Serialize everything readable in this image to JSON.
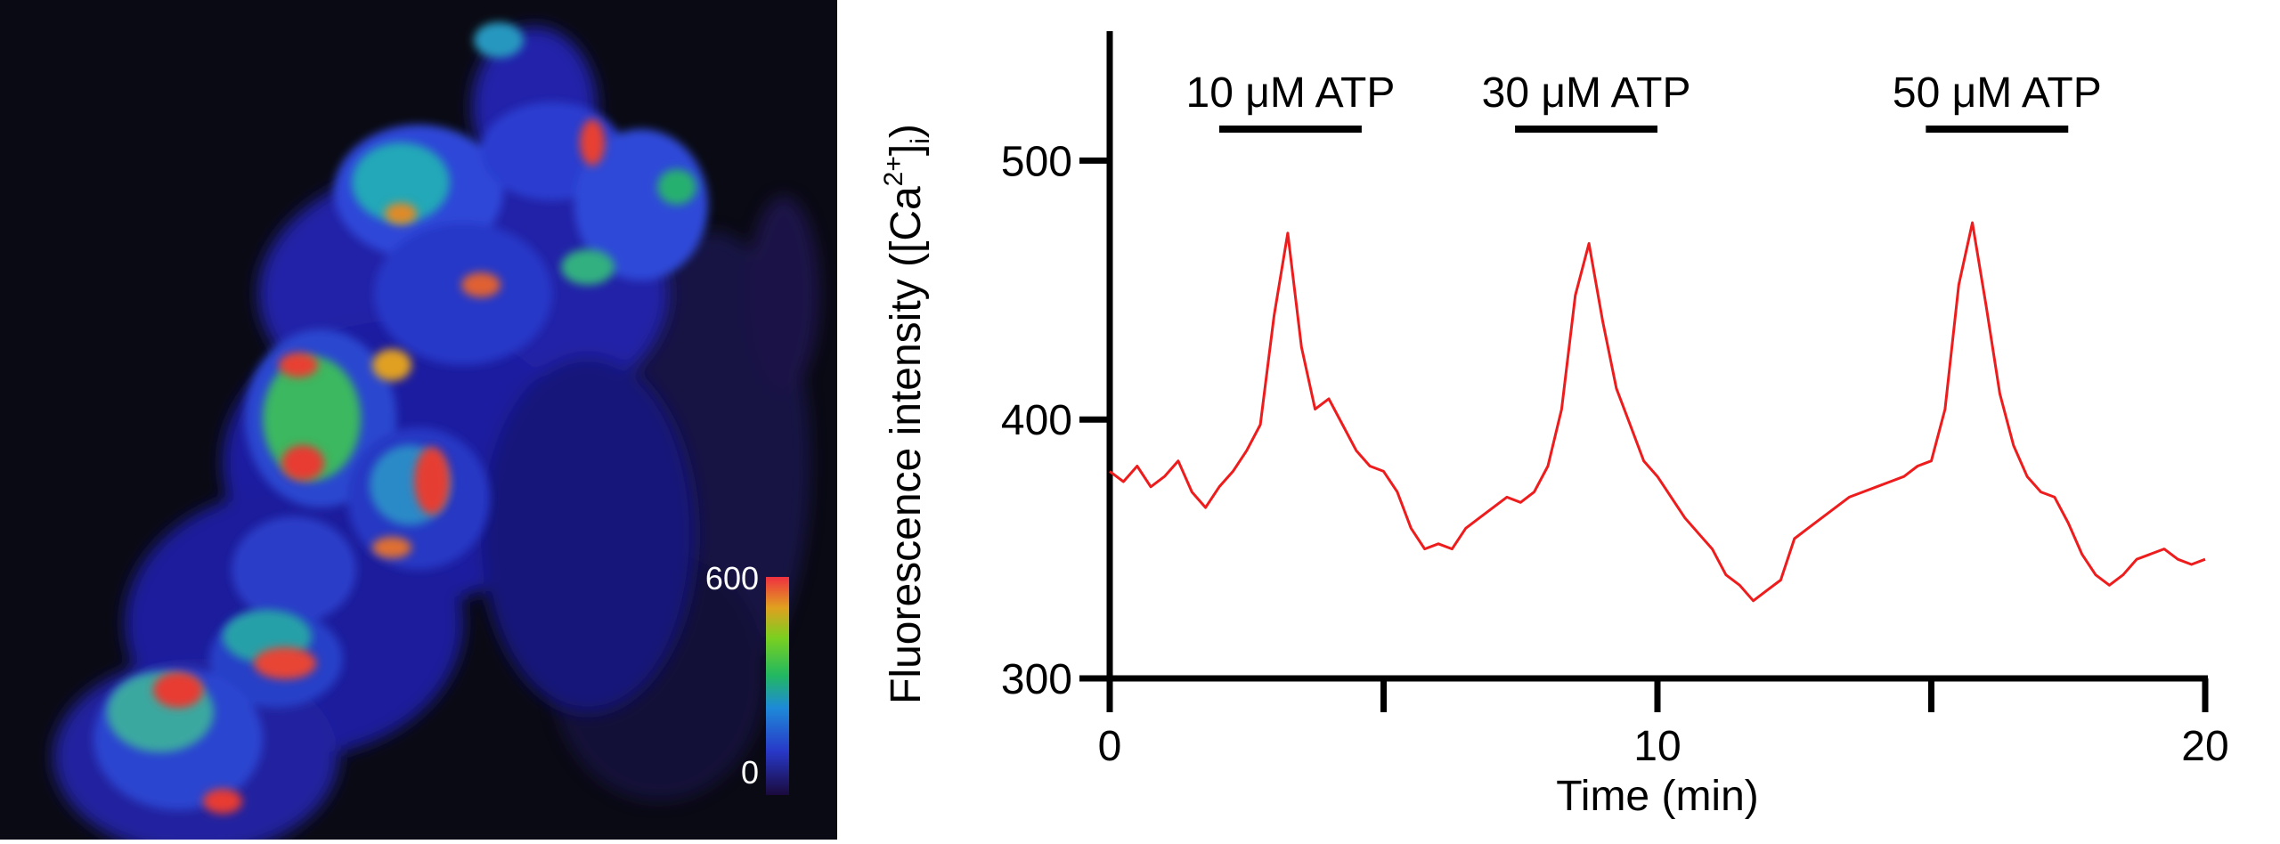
{
  "micrograph": {
    "colorbar": {
      "max_label": "600",
      "min_label": "0"
    }
  },
  "chart_data": {
    "type": "line",
    "xlabel": "Time (min)",
    "ylabel": "Fluorescence intensity ([Ca2+]i)",
    "ylabel_parts": {
      "main": "Fluorescence intensity ([Ca",
      "sup": "2+",
      "close": "]",
      "sub": "i",
      "end": ")"
    },
    "xlim": [
      0,
      20
    ],
    "ylim": [
      300,
      550
    ],
    "xticks": [
      0,
      5,
      10,
      15,
      20
    ],
    "xtick_labels": [
      "0",
      "",
      "10",
      "",
      "20"
    ],
    "yticks": [
      300,
      400,
      500
    ],
    "ytick_labels": [
      "300",
      "400",
      "500"
    ],
    "line_color": "#ee1c1c",
    "stimuli": [
      {
        "label": "10 μM ATP",
        "start": 2.0,
        "end": 4.6
      },
      {
        "label": "30 μM ATP",
        "start": 7.4,
        "end": 10.0
      },
      {
        "label": "50 μM ATP",
        "start": 14.9,
        "end": 17.5
      }
    ],
    "series": [
      {
        "x": [
          0,
          0.25,
          0.5,
          0.75,
          1.0,
          1.25,
          1.5,
          1.75,
          2.0,
          2.25,
          2.5,
          2.75,
          3.0,
          3.25,
          3.5,
          3.75,
          4.0,
          4.25,
          4.5,
          4.75,
          5.0,
          5.25,
          5.5,
          5.75,
          6.0,
          6.25,
          6.5,
          6.75,
          7.0,
          7.25,
          7.5,
          7.75,
          8.0,
          8.25,
          8.5,
          8.75,
          9.0,
          9.25,
          9.5,
          9.75,
          10.0,
          10.25,
          10.5,
          10.75,
          11.0,
          11.25,
          11.5,
          11.75,
          12.0,
          12.25,
          12.5,
          12.75,
          13.0,
          13.25,
          13.5,
          13.75,
          14.0,
          14.25,
          14.5,
          14.75,
          15.0,
          15.25,
          15.5,
          15.75,
          16.0,
          16.25,
          16.5,
          16.75,
          17.0,
          17.25,
          17.5,
          17.75,
          18.0,
          18.25,
          18.5,
          18.75,
          19.0,
          19.25,
          19.5,
          19.75,
          20.0
        ],
        "values": [
          380,
          376,
          382,
          374,
          378,
          384,
          372,
          366,
          374,
          380,
          388,
          398,
          440,
          472,
          428,
          404,
          408,
          398,
          388,
          382,
          380,
          372,
          358,
          350,
          352,
          350,
          358,
          362,
          366,
          370,
          368,
          372,
          382,
          404,
          448,
          468,
          438,
          412,
          398,
          384,
          378,
          370,
          362,
          356,
          350,
          340,
          336,
          330,
          334,
          338,
          354,
          358,
          362,
          366,
          370,
          372,
          374,
          376,
          378,
          382,
          384,
          404,
          452,
          476,
          444,
          410,
          390,
          378,
          372,
          370,
          360,
          348,
          340,
          336,
          340,
          346,
          348,
          350,
          346,
          344,
          346
        ]
      }
    ]
  }
}
